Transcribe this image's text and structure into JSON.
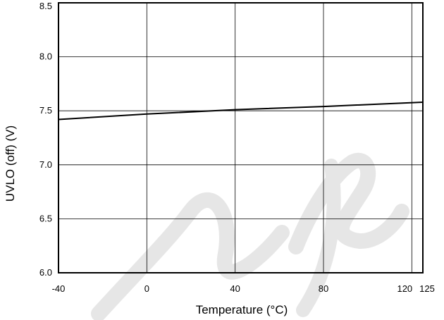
{
  "chart_data": {
    "type": "line",
    "xlabel": "Temperature (°C)",
    "ylabel": "UVLO (off) (V)",
    "xlim": [
      -40,
      125
    ],
    "ylim": [
      6.0,
      8.5
    ],
    "x_ticks": [
      -40,
      0,
      40,
      80,
      120,
      125
    ],
    "x_tick_labels": [
      "-40",
      "0",
      "40",
      "80",
      "120",
      "125"
    ],
    "y_ticks": [
      6.0,
      6.5,
      7.0,
      7.5,
      8.0,
      8.5
    ],
    "y_tick_labels": [
      "6.0",
      "6.5",
      "7.0",
      "7.5",
      "8.0",
      "8.5"
    ],
    "grid": true,
    "series": [
      {
        "x": [
          -40,
          0,
          40,
          80,
          125
        ],
        "y": [
          7.42,
          7.47,
          7.51,
          7.54,
          7.58
        ]
      }
    ]
  },
  "colors": {
    "line": "#000000",
    "grid": "#000000",
    "watermark": "#e6e6e6"
  }
}
